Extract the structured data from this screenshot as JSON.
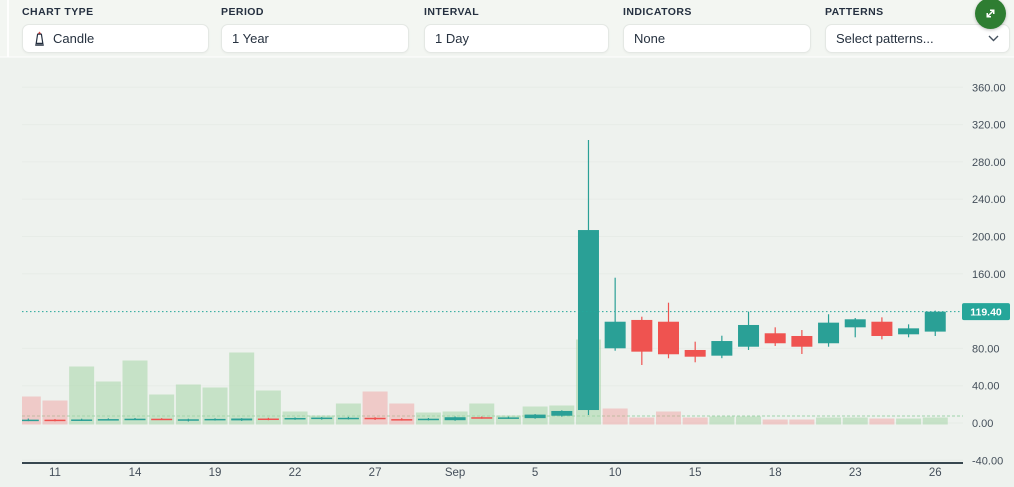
{
  "colors": {
    "page_bg": "#f3f6f2",
    "chart_bg": "#eef2ee",
    "grid": "#e7ece7",
    "up": "#2aa096",
    "down": "#ef5350",
    "vol_up": "rgba(165,214,167,0.55)",
    "vol_down": "rgba(239,154,154,0.45)",
    "price_line": "#26a69a",
    "badge_bg": "#26a69a",
    "badge_text": "#ffffff",
    "baseline": "#9fd4aa",
    "axis_line": "#37474f",
    "tick_text": "#444f5a",
    "expand_btn_bg": "#2e7d32",
    "expand_btn_fg": "#ffffff",
    "candle_icon_flame": "#d64541",
    "candle_icon_body": "#253040"
  },
  "toolbar": {
    "fields": [
      {
        "label": "CHART TYPE",
        "value": "Candle"
      },
      {
        "label": "PERIOD",
        "value": "1 Year"
      },
      {
        "label": "INTERVAL",
        "value": "1 Day"
      },
      {
        "label": "INDICATORS",
        "value": "None"
      },
      {
        "label": "PATTERNS",
        "value": "Select patterns..."
      }
    ]
  },
  "chart_data": {
    "type": "candlestick_with_volume",
    "title": "",
    "legend": "none",
    "grid": "horizontal",
    "last_price": 119.4,
    "last_price_label": "119.40",
    "baseline_value": 7.5,
    "price_axis": {
      "side": "right",
      "range": [
        -40,
        380
      ],
      "ticks": [
        {
          "v": 360,
          "label": "360.00"
        },
        {
          "v": 320,
          "label": "320.00"
        },
        {
          "v": 280,
          "label": "280.00"
        },
        {
          "v": 240,
          "label": "240.00"
        },
        {
          "v": 200,
          "label": "200.00"
        },
        {
          "v": 160,
          "label": "160.00"
        },
        {
          "v": 80,
          "label": "80.00"
        },
        {
          "v": 40,
          "label": "40.00"
        },
        {
          "v": 0,
          "label": "0.00"
        },
        {
          "v": -40,
          "label": "-40.00"
        }
      ]
    },
    "x_axis": {
      "ticks": [
        {
          "i": 1,
          "label": "11"
        },
        {
          "i": 4,
          "label": "14"
        },
        {
          "i": 7,
          "label": "19"
        },
        {
          "i": 10,
          "label": "22"
        },
        {
          "i": 13,
          "label": "27"
        },
        {
          "i": 16,
          "label": "Sep"
        },
        {
          "i": 19,
          "label": "5"
        },
        {
          "i": 22,
          "label": "10"
        },
        {
          "i": 25,
          "label": "15"
        },
        {
          "i": 28,
          "label": "18"
        },
        {
          "i": 31,
          "label": "23"
        },
        {
          "i": 34,
          "label": "26"
        }
      ]
    },
    "candles": [
      {
        "o": 2.8,
        "h": 4.8,
        "l": 2.0,
        "c": 3.6,
        "v": 28,
        "vd": "d"
      },
      {
        "o": 3.6,
        "h": 4.2,
        "l": 1.8,
        "c": 2.6,
        "v": 24,
        "vd": "d"
      },
      {
        "o": 2.6,
        "h": 4.6,
        "l": 2.2,
        "c": 3.8,
        "v": 58,
        "vd": "u"
      },
      {
        "o": 3.8,
        "h": 5.0,
        "l": 2.8,
        "c": 4.2,
        "v": 43,
        "vd": "u"
      },
      {
        "o": 4.2,
        "h": 5.4,
        "l": 3.2,
        "c": 4.6,
        "v": 64,
        "vd": "u"
      },
      {
        "o": 4.6,
        "h": 5.2,
        "l": 3.4,
        "c": 4.4,
        "v": 30,
        "vd": "u"
      },
      {
        "o": 3.4,
        "h": 4.6,
        "l": 1.6,
        "c": 4.0,
        "v": 40,
        "vd": "u"
      },
      {
        "o": 4.0,
        "h": 5.0,
        "l": 2.6,
        "c": 4.4,
        "v": 37,
        "vd": "u"
      },
      {
        "o": 2.8,
        "h": 5.2,
        "l": 2.2,
        "c": 4.8,
        "v": 72,
        "vd": "u"
      },
      {
        "o": 4.8,
        "h": 5.6,
        "l": 3.0,
        "c": 4.4,
        "v": 34,
        "vd": "u"
      },
      {
        "o": 4.4,
        "h": 6.0,
        "l": 3.4,
        "c": 5.4,
        "v": 13,
        "vd": "u"
      },
      {
        "o": 4.2,
        "h": 6.4,
        "l": 3.6,
        "c": 5.8,
        "v": 9,
        "vd": "u"
      },
      {
        "o": 4.6,
        "h": 6.6,
        "l": 3.8,
        "c": 5.6,
        "v": 21,
        "vd": "u"
      },
      {
        "o": 5.6,
        "h": 6.2,
        "l": 3.2,
        "c": 4.2,
        "v": 33,
        "vd": "d"
      },
      {
        "o": 4.2,
        "h": 5.2,
        "l": 2.6,
        "c": 3.4,
        "v": 21,
        "vd": "d"
      },
      {
        "o": 3.4,
        "h": 5.4,
        "l": 2.8,
        "c": 4.6,
        "v": 12,
        "vd": "u"
      },
      {
        "o": 3.0,
        "h": 7.0,
        "l": 2.4,
        "c": 6.2,
        "v": 13,
        "vd": "u"
      },
      {
        "o": 6.2,
        "h": 7.0,
        "l": 4.6,
        "c": 5.4,
        "v": 21,
        "vd": "u"
      },
      {
        "o": 5.4,
        "h": 6.8,
        "l": 4.4,
        "c": 6.0,
        "v": 9,
        "vd": "u"
      },
      {
        "o": 5.2,
        "h": 9.6,
        "l": 4.6,
        "c": 9.0,
        "v": 18,
        "vd": "u"
      },
      {
        "o": 7.8,
        "h": 13.6,
        "l": 6.8,
        "c": 12.9,
        "v": 19,
        "vd": "u"
      },
      {
        "o": 13.9,
        "h": 303.4,
        "l": 8.6,
        "c": 206.9,
        "v": 85,
        "vd": "u"
      },
      {
        "o": 80.1,
        "h": 155.8,
        "l": 77.5,
        "c": 108.6,
        "v": 16,
        "vd": "d"
      },
      {
        "o": 110.5,
        "h": 114.0,
        "l": 62.2,
        "c": 76.5,
        "v": 7,
        "vd": "d"
      },
      {
        "o": 108.6,
        "h": 129.0,
        "l": 69.4,
        "c": 73.7,
        "v": 13,
        "vd": "d"
      },
      {
        "o": 78.3,
        "h": 87.2,
        "l": 65.1,
        "c": 71.1,
        "v": 7,
        "vd": "d"
      },
      {
        "o": 72.2,
        "h": 93.6,
        "l": 69.5,
        "c": 87.9,
        "v": 8,
        "vd": "u"
      },
      {
        "o": 81.8,
        "h": 119.4,
        "l": 78.3,
        "c": 105.1,
        "v": 8,
        "vd": "u"
      },
      {
        "o": 96.2,
        "h": 102.6,
        "l": 82.6,
        "c": 85.5,
        "v": 5,
        "vd": "d"
      },
      {
        "o": 93.3,
        "h": 99.7,
        "l": 74.0,
        "c": 81.8,
        "v": 5,
        "vd": "d"
      },
      {
        "o": 85.5,
        "h": 116.6,
        "l": 81.8,
        "c": 107.6,
        "v": 7,
        "vd": "u"
      },
      {
        "o": 102.6,
        "h": 112.6,
        "l": 91.9,
        "c": 111.2,
        "v": 7,
        "vd": "u"
      },
      {
        "o": 108.6,
        "h": 113.3,
        "l": 89.7,
        "c": 93.3,
        "v": 6,
        "vd": "d"
      },
      {
        "o": 95.1,
        "h": 105.8,
        "l": 91.9,
        "c": 101.5,
        "v": 6,
        "vd": "u"
      },
      {
        "o": 98.0,
        "h": 120.5,
        "l": 93.3,
        "c": 119.4,
        "v": 7,
        "vd": "u"
      }
    ]
  }
}
